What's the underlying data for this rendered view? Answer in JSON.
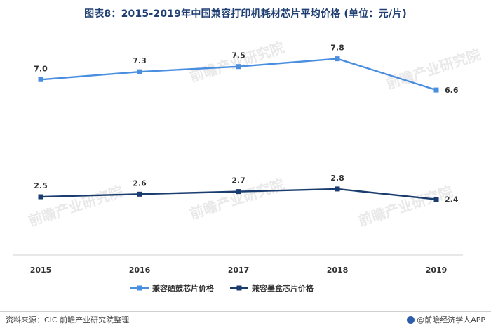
{
  "title": "图表8：2015-2019年中国兼容打印机耗材芯片平均价格 (单位：元/片)",
  "footer": {
    "source": "资料来源：CIC 前瞻产业研究院整理",
    "credit": "@前瞻经济学人APP"
  },
  "watermark": "前瞻产业研究院",
  "chart_data": {
    "type": "line",
    "title": "图表8：2015-2019年中国兼容打印机耗材芯片平均价格 (单位：元/片)",
    "categories": [
      "2015",
      "2016",
      "2017",
      "2018",
      "2019"
    ],
    "series": [
      {
        "name": "兼容硒鼓芯片价格",
        "values": [
          7.0,
          7.3,
          7.5,
          7.8,
          6.6
        ],
        "labels": [
          "7.0",
          "7.3",
          "7.5",
          "7.8",
          "6.6"
        ],
        "color": "#4a8ee0"
      },
      {
        "name": "兼容墨盒芯片价格",
        "values": [
          2.5,
          2.6,
          2.7,
          2.8,
          2.4
        ],
        "labels": [
          "2.5",
          "2.6",
          "2.7",
          "2.8",
          "2.4"
        ],
        "color": "#1a3c6e"
      }
    ],
    "grid": false,
    "legend": "bottom"
  }
}
